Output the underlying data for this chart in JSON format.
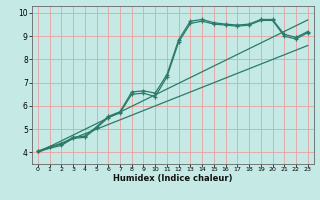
{
  "xlabel": "Humidex (Indice chaleur)",
  "bg_color": "#c5eae6",
  "grid_color": "#e8a0a0",
  "line_color": "#2a7a6a",
  "xlim": [
    -0.5,
    23.5
  ],
  "ylim": [
    3.5,
    10.3
  ],
  "xticks": [
    0,
    1,
    2,
    3,
    4,
    5,
    6,
    7,
    8,
    9,
    10,
    11,
    12,
    13,
    14,
    15,
    16,
    17,
    18,
    19,
    20,
    21,
    22,
    23
  ],
  "yticks": [
    4,
    5,
    6,
    7,
    8,
    9,
    10
  ],
  "curve1_x": [
    0,
    1,
    2,
    3,
    4,
    5,
    6,
    7,
    8,
    9,
    10,
    11,
    12,
    13,
    14,
    15,
    16,
    17,
    18,
    19,
    20,
    21,
    22,
    23
  ],
  "curve1_y": [
    4.05,
    4.25,
    4.35,
    4.65,
    4.7,
    5.1,
    5.55,
    5.75,
    6.6,
    6.65,
    6.55,
    7.35,
    8.85,
    9.65,
    9.72,
    9.58,
    9.52,
    9.48,
    9.52,
    9.72,
    9.72,
    9.08,
    8.95,
    9.2
  ],
  "curve2_x": [
    0,
    2,
    3,
    4,
    5,
    6,
    7,
    8,
    9,
    10,
    11,
    12,
    13,
    14,
    15,
    16,
    17,
    18,
    19,
    20,
    21,
    22,
    23
  ],
  "curve2_y": [
    4.05,
    4.3,
    4.6,
    4.65,
    5.05,
    5.5,
    5.7,
    6.5,
    6.55,
    6.4,
    7.25,
    8.75,
    9.55,
    9.65,
    9.52,
    9.48,
    9.43,
    9.48,
    9.68,
    9.68,
    9.0,
    8.88,
    9.15
  ],
  "line1_x": [
    0,
    23
  ],
  "line1_y": [
    4.0,
    9.7
  ],
  "line2_x": [
    0,
    23
  ],
  "line2_y": [
    4.0,
    8.6
  ]
}
